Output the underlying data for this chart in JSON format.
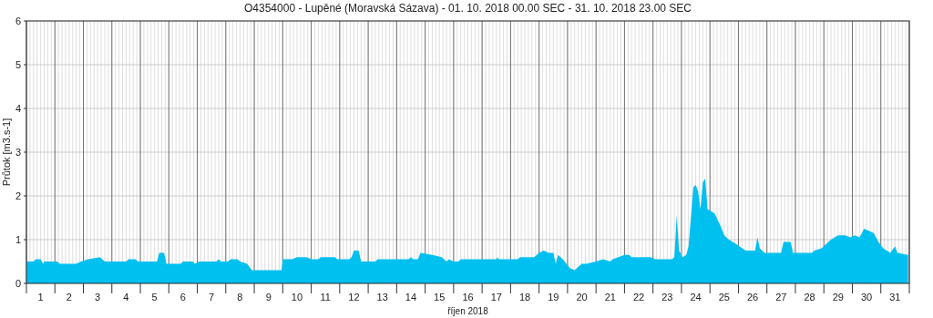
{
  "chart_data": {
    "type": "area",
    "title": "O4354000 - Lupěné (Moravská Sázava) - 01. 10. 2018 00.00 SEC - 31. 10. 2018 23.00 SEC",
    "xlabel": "říjen 2018",
    "ylabel": "Průtok [m3.s-1]",
    "x": [
      "2018-10-01T00:00",
      "2018-10-01T06:00",
      "2018-10-01T08:00",
      "2018-10-01T12:00",
      "2018-10-01T14:00",
      "2018-10-01T15:00",
      "2018-10-02T02:00",
      "2018-10-02T04:00",
      "2018-10-02T18:00",
      "2018-10-02T22:00",
      "2018-10-03T04:00",
      "2018-10-03T14:00",
      "2018-10-03T18:00",
      "2018-10-04T12:00",
      "2018-10-04T14:00",
      "2018-10-04T20:00",
      "2018-10-04T22:00",
      "2018-10-05T14:00",
      "2018-10-05T16:00",
      "2018-10-05T20:00",
      "2018-10-05T22:00",
      "2018-10-06T10:00",
      "2018-10-06T12:00",
      "2018-10-06T20:00",
      "2018-10-06T22:00",
      "2018-10-07T02:00",
      "2018-10-07T16:00",
      "2018-10-07T18:00",
      "2018-10-07T20:00",
      "2018-10-08T02:00",
      "2018-10-08T04:00",
      "2018-10-08T10:00",
      "2018-10-08T12:00",
      "2018-10-08T18:00",
      "2018-10-08T22:00",
      "2018-10-09T23:00",
      "2018-10-10T00:00",
      "2018-10-10T08:00",
      "2018-10-10T12:00",
      "2018-10-10T20:00",
      "2018-10-11T00:00",
      "2018-10-11T06:00",
      "2018-10-11T08:00",
      "2018-10-11T20:00",
      "2018-10-11T22:00",
      "2018-10-12T08:00",
      "2018-10-12T10:00",
      "2018-10-12T12:00",
      "2018-10-12T16:00",
      "2018-10-12T18:00",
      "2018-10-13T06:00",
      "2018-10-13T08:00",
      "2018-10-14T10:00",
      "2018-10-14T12:00",
      "2018-10-14T14:00",
      "2018-10-14T18:00",
      "2018-10-14T20:00",
      "2018-10-15T06:00",
      "2018-10-15T14:00",
      "2018-10-15T18:00",
      "2018-10-15T20:00",
      "2018-10-16T00:00",
      "2018-10-16T04:00",
      "2018-10-16T06:00",
      "2018-10-17T12:00",
      "2018-10-17T13:00",
      "2018-10-17T14:00",
      "2018-10-18T06:00",
      "2018-10-18T08:00",
      "2018-10-18T20:00",
      "2018-10-19T00:00",
      "2018-10-19T04:00",
      "2018-10-19T08:00",
      "2018-10-19T12:00",
      "2018-10-19T14:00",
      "2018-10-19T16:00",
      "2018-10-19T20:00",
      "2018-10-20T02:00",
      "2018-10-20T06:00",
      "2018-10-20T12:00",
      "2018-10-20T16:00",
      "2018-10-21T00:00",
      "2018-10-21T06:00",
      "2018-10-21T12:00",
      "2018-10-21T14:00",
      "2018-10-22T00:00",
      "2018-10-22T04:00",
      "2018-10-22T06:00",
      "2018-10-22T22:00",
      "2018-10-23T02:00",
      "2018-10-23T16:00",
      "2018-10-23T18:00",
      "2018-10-23T20:00",
      "2018-10-23T22:00",
      "2018-10-24T01:00",
      "2018-10-24T04:00",
      "2018-10-24T06:00",
      "2018-10-24T10:00",
      "2018-10-24T12:00",
      "2018-10-24T14:00",
      "2018-10-24T16:00",
      "2018-10-24T18:00",
      "2018-10-24T20:00",
      "2018-10-24T22:00",
      "2018-10-25T04:00",
      "2018-10-25T10:00",
      "2018-10-25T12:00",
      "2018-10-25T16:00",
      "2018-10-25T22:00",
      "2018-10-26T06:00",
      "2018-10-26T14:00",
      "2018-10-26T16:00",
      "2018-10-26T18:00",
      "2018-10-26T22:00",
      "2018-10-27T12:00",
      "2018-10-27T14:00",
      "2018-10-27T20:00",
      "2018-10-27T22:00",
      "2018-10-28T14:00",
      "2018-10-28T16:00",
      "2018-10-28T22:00",
      "2018-10-29T02:00",
      "2018-10-29T06:00",
      "2018-10-29T12:00",
      "2018-10-29T18:00",
      "2018-10-29T22:00",
      "2018-10-30T02:00",
      "2018-10-30T06:00",
      "2018-10-30T10:00",
      "2018-10-30T18:00",
      "2018-10-30T22:00",
      "2018-10-31T02:00",
      "2018-10-31T08:00",
      "2018-10-31T12:00",
      "2018-10-31T14:00",
      "2018-10-31T23:00"
    ],
    "values": [
      0.5,
      0.5,
      0.55,
      0.55,
      0.45,
      0.5,
      0.5,
      0.45,
      0.45,
      0.5,
      0.55,
      0.6,
      0.5,
      0.5,
      0.55,
      0.55,
      0.5,
      0.5,
      0.7,
      0.7,
      0.45,
      0.45,
      0.5,
      0.5,
      0.45,
      0.5,
      0.5,
      0.55,
      0.5,
      0.5,
      0.55,
      0.55,
      0.5,
      0.45,
      0.3,
      0.3,
      0.55,
      0.55,
      0.6,
      0.6,
      0.55,
      0.55,
      0.6,
      0.6,
      0.55,
      0.55,
      0.6,
      0.75,
      0.75,
      0.5,
      0.5,
      0.55,
      0.55,
      0.6,
      0.55,
      0.55,
      0.7,
      0.65,
      0.6,
      0.5,
      0.55,
      0.5,
      0.5,
      0.55,
      0.55,
      0.6,
      0.55,
      0.55,
      0.6,
      0.6,
      0.7,
      0.75,
      0.7,
      0.7,
      0.45,
      0.65,
      0.55,
      0.35,
      0.3,
      0.45,
      0.45,
      0.5,
      0.55,
      0.5,
      0.55,
      0.65,
      0.65,
      0.6,
      0.6,
      0.55,
      0.55,
      0.6,
      1.55,
      0.75,
      0.6,
      0.65,
      0.85,
      2.2,
      2.25,
      2.1,
      1.7,
      2.3,
      2.4,
      1.7,
      1.6,
      1.25,
      1.1,
      1.0,
      0.9,
      0.75,
      0.75,
      1.05,
      0.8,
      0.7,
      0.7,
      0.95,
      0.95,
      0.7,
      0.7,
      0.75,
      0.8,
      0.9,
      1.0,
      1.1,
      1.1,
      1.05,
      1.1,
      1.05,
      1.25,
      1.15,
      0.95,
      0.8,
      0.7,
      0.85,
      0.7,
      0.65
    ],
    "color": "#00c0f0",
    "xlim": [
      "2018-10-01T00:00",
      "2018-11-01T00:00"
    ],
    "xticks": [
      {
        "value": "2018-10-01T00:00",
        "label": null
      },
      {
        "value": "2018-10-01T12:00",
        "label": "1"
      },
      {
        "value": "2018-10-02T00:00",
        "label": null
      },
      {
        "value": "2018-10-02T12:00",
        "label": "2"
      },
      {
        "value": "2018-10-03T00:00",
        "label": null
      },
      {
        "value": "2018-10-03T12:00",
        "label": "3"
      },
      {
        "value": "2018-10-04T00:00",
        "label": null
      },
      {
        "value": "2018-10-04T12:00",
        "label": "4"
      },
      {
        "value": "2018-10-05T00:00",
        "label": null
      },
      {
        "value": "2018-10-05T12:00",
        "label": "5"
      },
      {
        "value": "2018-10-06T00:00",
        "label": null
      },
      {
        "value": "2018-10-06T12:00",
        "label": "6"
      },
      {
        "value": "2018-10-07T00:00",
        "label": null
      },
      {
        "value": "2018-10-07T12:00",
        "label": "7"
      },
      {
        "value": "2018-10-08T00:00",
        "label": null
      },
      {
        "value": "2018-10-08T12:00",
        "label": "8"
      },
      {
        "value": "2018-10-09T00:00",
        "label": null
      },
      {
        "value": "2018-10-09T12:00",
        "label": "9"
      },
      {
        "value": "2018-10-10T00:00",
        "label": null
      },
      {
        "value": "2018-10-10T12:00",
        "label": "10"
      },
      {
        "value": "2018-10-11T00:00",
        "label": null
      },
      {
        "value": "2018-10-11T12:00",
        "label": "11"
      },
      {
        "value": "2018-10-12T00:00",
        "label": null
      },
      {
        "value": "2018-10-12T12:00",
        "label": "12"
      },
      {
        "value": "2018-10-13T00:00",
        "label": null
      },
      {
        "value": "2018-10-13T12:00",
        "label": "13"
      },
      {
        "value": "2018-10-14T00:00",
        "label": null
      },
      {
        "value": "2018-10-14T12:00",
        "label": "14"
      },
      {
        "value": "2018-10-15T00:00",
        "label": null
      },
      {
        "value": "2018-10-15T12:00",
        "label": "15"
      },
      {
        "value": "2018-10-16T00:00",
        "label": null
      },
      {
        "value": "2018-10-16T12:00",
        "label": "16"
      },
      {
        "value": "2018-10-17T00:00",
        "label": null
      },
      {
        "value": "2018-10-17T12:00",
        "label": "17"
      },
      {
        "value": "2018-10-18T00:00",
        "label": null
      },
      {
        "value": "2018-10-18T12:00",
        "label": "18"
      },
      {
        "value": "2018-10-19T00:00",
        "label": null
      },
      {
        "value": "2018-10-19T12:00",
        "label": "19"
      },
      {
        "value": "2018-10-20T00:00",
        "label": null
      },
      {
        "value": "2018-10-20T12:00",
        "label": "20"
      },
      {
        "value": "2018-10-21T00:00",
        "label": null
      },
      {
        "value": "2018-10-21T12:00",
        "label": "21"
      },
      {
        "value": "2018-10-22T00:00",
        "label": null
      },
      {
        "value": "2018-10-22T12:00",
        "label": "22"
      },
      {
        "value": "2018-10-23T00:00",
        "label": null
      },
      {
        "value": "2018-10-23T12:00",
        "label": "23"
      },
      {
        "value": "2018-10-24T00:00",
        "label": null
      },
      {
        "value": "2018-10-24T12:00",
        "label": "24"
      },
      {
        "value": "2018-10-25T00:00",
        "label": null
      },
      {
        "value": "2018-10-25T12:00",
        "label": "25"
      },
      {
        "value": "2018-10-26T00:00",
        "label": null
      },
      {
        "value": "2018-10-26T12:00",
        "label": "26"
      },
      {
        "value": "2018-10-27T00:00",
        "label": null
      },
      {
        "value": "2018-10-27T12:00",
        "label": "27"
      },
      {
        "value": "2018-10-28T00:00",
        "label": null
      },
      {
        "value": "2018-10-28T12:00",
        "label": "28"
      },
      {
        "value": "2018-10-29T00:00",
        "label": null
      },
      {
        "value": "2018-10-29T12:00",
        "label": "29"
      },
      {
        "value": "2018-10-30T00:00",
        "label": null
      },
      {
        "value": "2018-10-30T12:00",
        "label": "30"
      },
      {
        "value": "2018-10-31T00:00",
        "label": null
      },
      {
        "value": "2018-10-31T12:00",
        "label": "31"
      },
      {
        "value": "2018-11-01T00:00",
        "label": null
      }
    ],
    "ylim": [
      0,
      6
    ],
    "yticks": [
      0,
      1,
      2,
      3,
      4,
      5,
      6
    ],
    "grid": true
  }
}
